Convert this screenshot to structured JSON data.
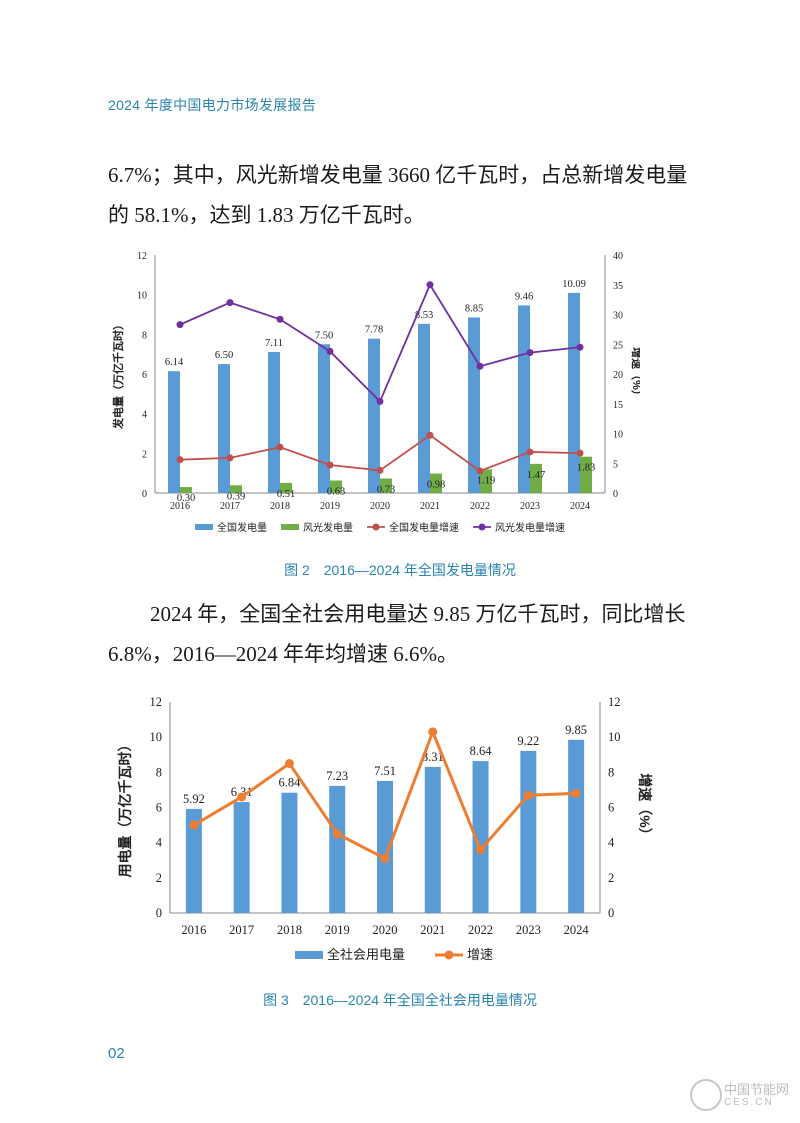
{
  "header": {
    "title": "2024 年度中国电力市场发展报告"
  },
  "paragraphs": {
    "p1": "6.7%；其中，风光新增发电量 3660 亿千瓦时，占总新增发电量的 58.1%，达到 1.83 万亿千瓦时。",
    "p2": "2024 年，全国全社会用电量达 9.85 万亿千瓦时，同比增长 6.8%，2016—2024 年年均增速 6.6%。"
  },
  "captions": {
    "fig2": "图 2　2016—2024 年全国发电量情况",
    "fig3": "图 3　2016—2024 年全国全社会用电量情况"
  },
  "page_number": "02",
  "watermark": {
    "line1": "中国节能网",
    "line2": "CES.CN"
  },
  "colors": {
    "bar_blue": "#5b9bd5",
    "bar_green": "#70ad47",
    "line_red": "#c0504d",
    "line_purple": "#7030a0",
    "line_orange": "#ed7d31",
    "accent": "#2a84b0"
  },
  "chart_data": [
    {
      "type": "bar",
      "categories": [
        "2016",
        "2017",
        "2018",
        "2019",
        "2020",
        "2021",
        "2022",
        "2023",
        "2024"
      ],
      "ylabel": "发电量（万亿千瓦时）",
      "y2label": "增速（%）",
      "ylim": [
        0,
        12
      ],
      "y2lim": [
        0,
        40
      ],
      "yticks": [
        "0",
        "2",
        "4",
        "6",
        "8",
        "10",
        "12"
      ],
      "y2ticks": [
        "0",
        "5",
        "10",
        "15",
        "20",
        "25",
        "30",
        "35",
        "40"
      ],
      "legend_position": "bottom",
      "grid": false,
      "series": [
        {
          "name": "全国发电量",
          "kind": "bar",
          "axis": "left",
          "values": [
            6.14,
            6.5,
            7.11,
            7.5,
            7.78,
            8.53,
            8.85,
            9.46,
            10.09
          ],
          "labels": [
            "6.14",
            "6.50",
            "7.11",
            "7.50",
            "7.78",
            "8.53",
            "8.85",
            "9.46",
            "10.09"
          ],
          "color": "#5b9bd5"
        },
        {
          "name": "风光发电量",
          "kind": "bar",
          "axis": "left",
          "values": [
            0.3,
            0.39,
            0.51,
            0.63,
            0.73,
            0.98,
            1.19,
            1.47,
            1.83
          ],
          "labels": [
            "0.30",
            "0.39",
            "0.51",
            "0.63",
            "0.73",
            "0.98",
            "1.19",
            "1.47",
            "1.83"
          ],
          "color": "#70ad47"
        },
        {
          "name": "全国发电量增速",
          "kind": "line",
          "axis": "right",
          "values": [
            5.6,
            5.9,
            7.7,
            4.7,
            3.8,
            9.7,
            3.7,
            6.9,
            6.7
          ],
          "color": "#c0504d"
        },
        {
          "name": "风光发电量增速",
          "kind": "line",
          "axis": "right",
          "values": [
            28.3,
            32.0,
            29.2,
            23.8,
            15.4,
            35.0,
            21.3,
            23.6,
            24.5
          ],
          "color": "#7030a0"
        }
      ]
    },
    {
      "type": "bar",
      "categories": [
        "2016",
        "2017",
        "2018",
        "2019",
        "2020",
        "2021",
        "2022",
        "2023",
        "2024"
      ],
      "ylabel": "用电量（万亿千瓦时）",
      "y2label": "增速（%）",
      "ylim": [
        0,
        12
      ],
      "y2lim": [
        0,
        12
      ],
      "yticks": [
        "0",
        "2",
        "4",
        "6",
        "8",
        "10",
        "12"
      ],
      "y2ticks": [
        "0",
        "2",
        "4",
        "6",
        "8",
        "10",
        "12"
      ],
      "legend_position": "bottom",
      "grid": false,
      "series": [
        {
          "name": "全社会用电量",
          "kind": "bar",
          "axis": "left",
          "values": [
            5.92,
            6.31,
            6.84,
            7.23,
            7.51,
            8.31,
            8.64,
            9.22,
            9.85
          ],
          "labels": [
            "5.92",
            "6.31",
            "6.84",
            "7.23",
            "7.51",
            "8.31",
            "8.64",
            "9.22",
            "9.85"
          ],
          "color": "#5b9bd5"
        },
        {
          "name": "增速",
          "kind": "line",
          "axis": "right",
          "values": [
            5.0,
            6.6,
            8.5,
            4.5,
            3.1,
            10.3,
            3.6,
            6.7,
            6.8
          ],
          "color": "#ed7d31"
        }
      ]
    }
  ]
}
